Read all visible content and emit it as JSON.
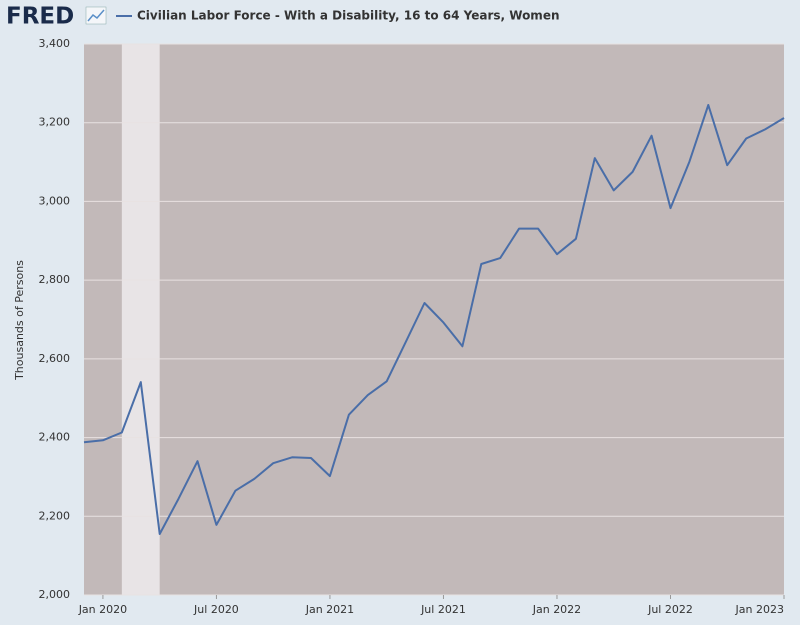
{
  "chart_data": {
    "type": "line",
    "logo": "FRED",
    "title": "Civilian Labor Force - With a Disability, 16 to 64 Years, Women",
    "y_label": "Thousands of Persons",
    "x": [
      "Dec 2019",
      "Jan 2020",
      "Feb 2020",
      "Mar 2020",
      "Apr 2020",
      "May 2020",
      "Jun 2020",
      "Jul 2020",
      "Aug 2020",
      "Sep 2020",
      "Oct 2020",
      "Nov 2020",
      "Dec 2020",
      "Jan 2021",
      "Feb 2021",
      "Mar 2021",
      "Apr 2021",
      "May 2021",
      "Jun 2021",
      "Jul 2021",
      "Aug 2021",
      "Sep 2021",
      "Oct 2021",
      "Nov 2021",
      "Dec 2021",
      "Jan 2022",
      "Feb 2022",
      "Mar 2022",
      "Apr 2022",
      "May 2022",
      "Jun 2022",
      "Jul 2022",
      "Aug 2022",
      "Sep 2022",
      "Oct 2022",
      "Nov 2022",
      "Dec 2022",
      "Jan 2023"
    ],
    "series": [
      {
        "name": "Civilian Labor Force - With a Disability, 16 to 64 Years, Women",
        "color": "#4a6ea8",
        "values": [
          2388,
          2393,
          2413,
          2541,
          2155,
          2245,
          2340,
          2178,
          2265,
          2295,
          2335,
          2350,
          2348,
          2302,
          2458,
          2508,
          2543,
          2642,
          2742,
          2692,
          2632,
          2841,
          2856,
          2931,
          2931,
          2866,
          2905,
          3110,
          3028,
          3075,
          3167,
          2983,
          3101,
          3245,
          3092,
          3160,
          3183,
          3212
        ]
      }
    ],
    "xlim": [
      "Dec 2019",
      "Jan 2023"
    ],
    "xticks": [
      "Jan 2020",
      "Jul 2020",
      "Jan 2021",
      "Jul 2021",
      "Jan 2022",
      "Jul 2022",
      "Jan 2023"
    ],
    "ylim": [
      2000,
      3400
    ],
    "yticks": [
      {
        "value": 2000,
        "label": "2,000"
      },
      {
        "value": 2200,
        "label": "2,200"
      },
      {
        "value": 2400,
        "label": "2,400"
      },
      {
        "value": 2600,
        "label": "2,600"
      },
      {
        "value": 2800,
        "label": "2,800"
      },
      {
        "value": 3000,
        "label": "3,000"
      },
      {
        "value": 3200,
        "label": "3,200"
      },
      {
        "value": 3400,
        "label": "3,400"
      }
    ],
    "grid": true,
    "recession": [
      "Feb 2020",
      "Apr 2020"
    ]
  }
}
